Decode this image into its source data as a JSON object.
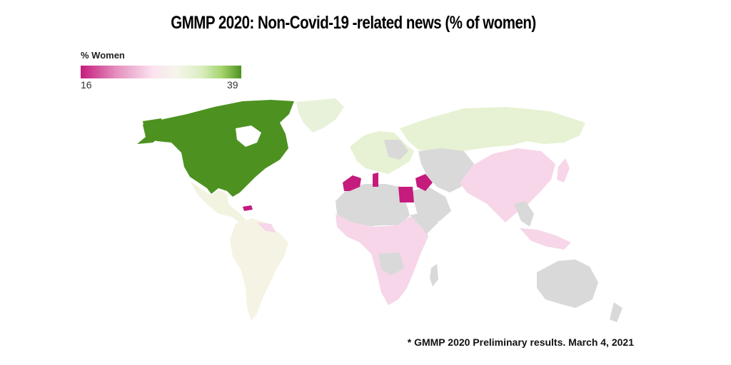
{
  "title": "GMMP 2020: Non-Covid-19 -related news (% of women)",
  "legend": {
    "title": "% Women",
    "min": "16",
    "max": "39"
  },
  "footnote": "* GMMP 2020 Preliminary results. March 4, 2021",
  "colors": {
    "high": "#4d9221",
    "low": "#c51b7d",
    "light_pink": "#f6d6e8",
    "light_green": "#e6f2d3",
    "beige": "#f5f4e4",
    "no_data": "#d9d9d9"
  }
}
